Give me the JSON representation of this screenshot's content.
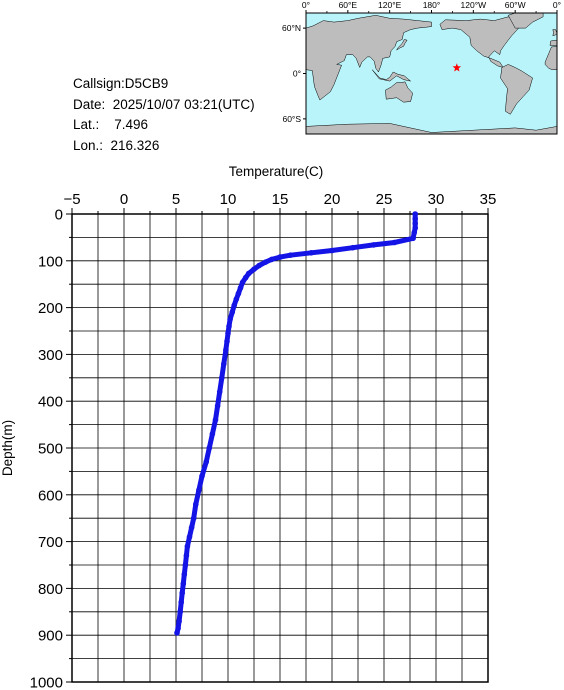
{
  "info": {
    "callsign": "Callsign:D5CB9",
    "date": "Date:  2025/10/07 03:21(UTC)",
    "lat": "Lat.:    7.496",
    "lon": "Lon.:  216.326"
  },
  "map": {
    "lon_labels": [
      "0°",
      "60°E",
      "120°E",
      "180°",
      "120°W",
      "60°W",
      "0°"
    ],
    "lat_labels": [
      "60°N",
      "0°",
      "60°S"
    ],
    "ocean_color": "#b8f4fa",
    "land_color": "#bdbdbd",
    "marker": {
      "lat": 7.496,
      "lon": 216.326,
      "color": "#ff0000",
      "icon": "star-icon"
    }
  },
  "chart_data": {
    "type": "line",
    "title": "",
    "xlabel": "Temperature(C)",
    "ylabel": "Depth(m)",
    "xlim": [
      -5,
      35
    ],
    "ylim": [
      0,
      1000
    ],
    "y_inverted": true,
    "x_ticks": [
      "-5",
      "0",
      "5",
      "10",
      "15",
      "20",
      "25",
      "30",
      "35"
    ],
    "y_ticks": [
      "0",
      "100",
      "200",
      "300",
      "400",
      "500",
      "600",
      "700",
      "800",
      "900",
      "1000"
    ],
    "grid": true,
    "series_color": "#1414e6",
    "series": [
      {
        "x": [
          28.0,
          28.0,
          28.0,
          28.0,
          27.9,
          27.8,
          26.0,
          24.0,
          22.0,
          20.0,
          18.0,
          16.0,
          15.0,
          14.2,
          13.6,
          13.0,
          12.5,
          12.0,
          11.7,
          11.4,
          11.2,
          11.0,
          10.8,
          10.6,
          10.4,
          10.2,
          10.1,
          10.0,
          9.9,
          9.8,
          9.6,
          9.4,
          9.2,
          9.0,
          8.8,
          8.5,
          8.2,
          7.9,
          7.5,
          7.2,
          6.9,
          6.7,
          6.5,
          6.3,
          6.1,
          6.0,
          5.9,
          5.8,
          5.7,
          5.6,
          5.5,
          5.4,
          5.3,
          5.2,
          5.1
        ],
        "y": [
          0,
          10,
          20,
          30,
          40,
          52,
          61,
          66,
          72,
          78,
          83,
          88,
          92,
          97,
          103,
          110,
          118,
          127,
          136,
          146,
          158,
          170,
          182,
          195,
          210,
          225,
          240,
          255,
          272,
          290,
          320,
          350,
          380,
          410,
          440,
          470,
          500,
          530,
          560,
          590,
          620,
          650,
          670,
          690,
          710,
          730,
          750,
          770,
          790,
          810,
          830,
          850,
          870,
          885,
          895
        ]
      }
    ]
  }
}
